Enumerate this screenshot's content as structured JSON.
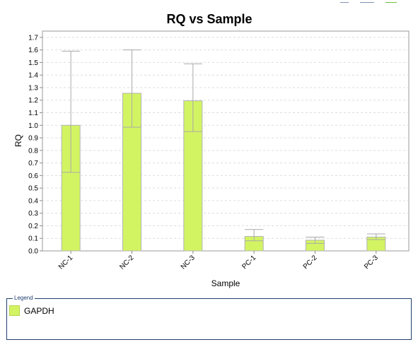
{
  "colors": {
    "bar_fill": "#d3f462",
    "bar_stroke": "#b3b3b3",
    "error_bar": "#aaaaaa",
    "grid": "#dddddd",
    "legend_border": "#1f3f6f"
  },
  "toolbar": {
    "icons": [
      "zoom-icon",
      "window-icon",
      "export-icon"
    ]
  },
  "legend": {
    "title": "Legend",
    "items": [
      {
        "label": "GAPDH",
        "color": "#d3f462"
      }
    ]
  },
  "chart_data": {
    "type": "bar",
    "title": "RQ vs Sample",
    "xlabel": "Sample",
    "ylabel": "RQ",
    "ylim": [
      0,
      1.75
    ],
    "yticks": [
      "0.0",
      "0.1",
      "0.2",
      "0.3",
      "0.4",
      "0.5",
      "0.6",
      "0.7",
      "0.8",
      "0.9",
      "1.0",
      "1.1",
      "1.2",
      "1.3",
      "1.4",
      "1.5",
      "1.6",
      "1.7"
    ],
    "grid": true,
    "legend_position": "bottom",
    "categories": [
      "NC-1",
      "NC-2",
      "NC-3",
      "PC-1",
      "PC-2",
      "PC-3"
    ],
    "series": [
      {
        "name": "GAPDH",
        "values": [
          1.0,
          1.255,
          1.195,
          0.115,
          0.085,
          0.11
        ],
        "error_low": [
          0.625,
          0.985,
          0.95,
          0.08,
          0.06,
          0.09
        ],
        "error_high": [
          1.59,
          1.6,
          1.49,
          0.17,
          0.11,
          0.135
        ]
      }
    ]
  }
}
